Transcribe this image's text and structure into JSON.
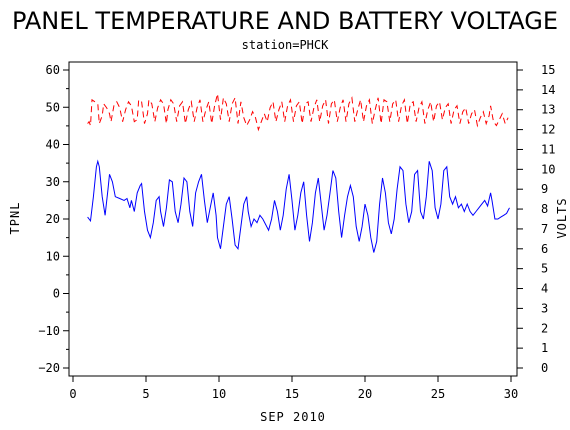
{
  "chart_data": {
    "type": "line",
    "title": "PANEL TEMPERATURE AND BATTERY VOLTAGE",
    "subtitle": "station=PHCK",
    "xlabel": "SEP 2010",
    "ylabel_left": "TPNL",
    "ylabel_right": "VOLTS",
    "xlim": [
      0,
      30
    ],
    "ylim_left": [
      -20,
      60
    ],
    "ylim_right": [
      0,
      15
    ],
    "x_ticks": [
      0,
      5,
      10,
      15,
      20,
      25,
      30
    ],
    "y_left_ticks": [
      -20,
      -10,
      0,
      10,
      20,
      30,
      40,
      50,
      60
    ],
    "y_right_ticks": [
      0,
      1,
      2,
      3,
      4,
      5,
      6,
      7,
      8,
      9,
      10,
      11,
      12,
      13,
      14,
      15
    ],
    "series": [
      {
        "axis": "left",
        "color": "#0000ff",
        "style": "solid",
        "points": [
          [
            1.0,
            20.5
          ],
          [
            1.2,
            19.5
          ],
          [
            1.4,
            26
          ],
          [
            1.6,
            34
          ],
          [
            1.7,
            35.5
          ],
          [
            1.8,
            34
          ],
          [
            2.0,
            26
          ],
          [
            2.2,
            21
          ],
          [
            2.4,
            28
          ],
          [
            2.5,
            32
          ],
          [
            2.7,
            30
          ],
          [
            2.9,
            26
          ],
          [
            3.2,
            25.5
          ],
          [
            3.5,
            25
          ],
          [
            3.7,
            25.5
          ],
          [
            3.9,
            23
          ],
          [
            4.0,
            25
          ],
          [
            4.2,
            22
          ],
          [
            4.4,
            27
          ],
          [
            4.6,
            29
          ],
          [
            4.7,
            29.5
          ],
          [
            4.9,
            22
          ],
          [
            5.1,
            17
          ],
          [
            5.3,
            15
          ],
          [
            5.5,
            19
          ],
          [
            5.7,
            25
          ],
          [
            5.9,
            26
          ],
          [
            6.0,
            22
          ],
          [
            6.2,
            18
          ],
          [
            6.4,
            23
          ],
          [
            6.6,
            30.5
          ],
          [
            6.8,
            30
          ],
          [
            7.0,
            22
          ],
          [
            7.2,
            19
          ],
          [
            7.4,
            24
          ],
          [
            7.6,
            31
          ],
          [
            7.8,
            30
          ],
          [
            8.0,
            22
          ],
          [
            8.2,
            18
          ],
          [
            8.4,
            27
          ],
          [
            8.6,
            30
          ],
          [
            8.8,
            32
          ],
          [
            9.0,
            25
          ],
          [
            9.2,
            19
          ],
          [
            9.4,
            23
          ],
          [
            9.6,
            27
          ],
          [
            9.8,
            21
          ],
          [
            9.9,
            15
          ],
          [
            10.1,
            12
          ],
          [
            10.3,
            18
          ],
          [
            10.5,
            24
          ],
          [
            10.7,
            26
          ],
          [
            10.9,
            20
          ],
          [
            11.1,
            13
          ],
          [
            11.3,
            12
          ],
          [
            11.5,
            18
          ],
          [
            11.7,
            24
          ],
          [
            11.9,
            26
          ],
          [
            12.0,
            22
          ],
          [
            12.2,
            18
          ],
          [
            12.4,
            20
          ],
          [
            12.6,
            19
          ],
          [
            12.8,
            21
          ],
          [
            13.0,
            20
          ],
          [
            13.2,
            18.5
          ],
          [
            13.4,
            17
          ],
          [
            13.6,
            20
          ],
          [
            13.8,
            25
          ],
          [
            14.0,
            22
          ],
          [
            14.2,
            17
          ],
          [
            14.4,
            21
          ],
          [
            14.6,
            28
          ],
          [
            14.8,
            32
          ],
          [
            15.0,
            25
          ],
          [
            15.2,
            17
          ],
          [
            15.4,
            21
          ],
          [
            15.6,
            27
          ],
          [
            15.8,
            30
          ],
          [
            16.0,
            21
          ],
          [
            16.2,
            14
          ],
          [
            16.4,
            19
          ],
          [
            16.6,
            27
          ],
          [
            16.8,
            31
          ],
          [
            17.0,
            24
          ],
          [
            17.2,
            17
          ],
          [
            17.4,
            21
          ],
          [
            17.6,
            27
          ],
          [
            17.8,
            33
          ],
          [
            18.0,
            31
          ],
          [
            18.2,
            22
          ],
          [
            18.4,
            15
          ],
          [
            18.6,
            21
          ],
          [
            18.8,
            26
          ],
          [
            19.0,
            29
          ],
          [
            19.2,
            26
          ],
          [
            19.4,
            18
          ],
          [
            19.6,
            14
          ],
          [
            19.8,
            18
          ],
          [
            20.0,
            24
          ],
          [
            20.2,
            21
          ],
          [
            20.4,
            15
          ],
          [
            20.6,
            11
          ],
          [
            20.8,
            14
          ],
          [
            21.0,
            24
          ],
          [
            21.2,
            31
          ],
          [
            21.4,
            27
          ],
          [
            21.6,
            19
          ],
          [
            21.8,
            16
          ],
          [
            22.0,
            20
          ],
          [
            22.2,
            28
          ],
          [
            22.4,
            34
          ],
          [
            22.6,
            33
          ],
          [
            22.8,
            24
          ],
          [
            23.0,
            19
          ],
          [
            23.2,
            22
          ],
          [
            23.4,
            32
          ],
          [
            23.6,
            33
          ],
          [
            23.8,
            22
          ],
          [
            24.0,
            20
          ],
          [
            24.2,
            26
          ],
          [
            24.4,
            35.5
          ],
          [
            24.6,
            33
          ],
          [
            24.8,
            23
          ],
          [
            25.0,
            20
          ],
          [
            25.2,
            24
          ],
          [
            25.4,
            33
          ],
          [
            25.6,
            34
          ],
          [
            25.8,
            26
          ],
          [
            26.0,
            24
          ],
          [
            26.2,
            26
          ],
          [
            26.4,
            23
          ],
          [
            26.6,
            24
          ],
          [
            26.8,
            22
          ],
          [
            27.0,
            24
          ],
          [
            27.2,
            22
          ],
          [
            27.4,
            21
          ],
          [
            27.6,
            22
          ],
          [
            27.8,
            23
          ],
          [
            28.0,
            24
          ],
          [
            28.2,
            25
          ],
          [
            28.4,
            23.5
          ],
          [
            28.6,
            27
          ],
          [
            28.7,
            25
          ],
          [
            28.9,
            20
          ],
          [
            29.1,
            20
          ],
          [
            29.3,
            20.5
          ],
          [
            29.5,
            21
          ],
          [
            29.7,
            21.5
          ],
          [
            29.9,
            23
          ]
        ]
      },
      {
        "axis": "right",
        "color": "#ff0000",
        "style": "dashed",
        "points": [
          [
            1.0,
            12.3
          ],
          [
            1.1,
            12.4
          ],
          [
            1.2,
            12.2
          ],
          [
            1.3,
            13.5
          ],
          [
            1.5,
            13.4
          ],
          [
            1.7,
            13.3
          ],
          [
            1.8,
            12.3
          ],
          [
            2.0,
            12.7
          ],
          [
            2.1,
            13.3
          ],
          [
            2.3,
            13.1
          ],
          [
            2.5,
            12.8
          ],
          [
            2.6,
            12.4
          ],
          [
            2.8,
            13.2
          ],
          [
            3.0,
            13.4
          ],
          [
            3.2,
            13.1
          ],
          [
            3.4,
            12.4
          ],
          [
            3.6,
            13.0
          ],
          [
            3.8,
            13.4
          ],
          [
            4.0,
            13.2
          ],
          [
            4.2,
            12.4
          ],
          [
            4.4,
            12.5
          ],
          [
            4.5,
            13.5
          ],
          [
            4.7,
            13.4
          ],
          [
            4.9,
            12.3
          ],
          [
            5.1,
            12.8
          ],
          [
            5.2,
            13.5
          ],
          [
            5.4,
            13.3
          ],
          [
            5.6,
            12.4
          ],
          [
            5.8,
            13.1
          ],
          [
            6.0,
            13.5
          ],
          [
            6.2,
            13.3
          ],
          [
            6.4,
            12.3
          ],
          [
            6.5,
            13.0
          ],
          [
            6.7,
            13.5
          ],
          [
            6.9,
            13.3
          ],
          [
            7.1,
            12.4
          ],
          [
            7.3,
            13.2
          ],
          [
            7.5,
            13.4
          ],
          [
            7.7,
            12.3
          ],
          [
            7.9,
            13.0
          ],
          [
            8.1,
            13.4
          ],
          [
            8.3,
            12.4
          ],
          [
            8.5,
            13.1
          ],
          [
            8.7,
            13.5
          ],
          [
            8.9,
            12.4
          ],
          [
            9.1,
            13.0
          ],
          [
            9.3,
            13.4
          ],
          [
            9.5,
            12.3
          ],
          [
            9.7,
            13.2
          ],
          [
            9.9,
            13.8
          ],
          [
            10.1,
            12.5
          ],
          [
            10.3,
            13.6
          ],
          [
            10.5,
            13.3
          ],
          [
            10.7,
            12.4
          ],
          [
            10.9,
            13.3
          ],
          [
            11.1,
            13.6
          ],
          [
            11.3,
            12.3
          ],
          [
            11.5,
            13.4
          ],
          [
            11.7,
            12.6
          ],
          [
            11.9,
            12.2
          ],
          [
            12.1,
            12.5
          ],
          [
            12.3,
            12.9
          ],
          [
            12.5,
            12.6
          ],
          [
            12.7,
            12.0
          ],
          [
            12.9,
            12.4
          ],
          [
            13.1,
            12.8
          ],
          [
            13.3,
            12.4
          ],
          [
            13.5,
            13.1
          ],
          [
            13.7,
            13.4
          ],
          [
            13.9,
            12.4
          ],
          [
            14.1,
            13.0
          ],
          [
            14.3,
            13.4
          ],
          [
            14.5,
            12.4
          ],
          [
            14.7,
            13.2
          ],
          [
            14.9,
            13.5
          ],
          [
            15.1,
            12.4
          ],
          [
            15.3,
            13.2
          ],
          [
            15.5,
            13.4
          ],
          [
            15.7,
            12.3
          ],
          [
            15.9,
            13.3
          ],
          [
            16.1,
            13.4
          ],
          [
            16.3,
            12.4
          ],
          [
            16.5,
            13.1
          ],
          [
            16.7,
            13.5
          ],
          [
            16.9,
            12.4
          ],
          [
            17.1,
            13.2
          ],
          [
            17.3,
            13.5
          ],
          [
            17.5,
            12.3
          ],
          [
            17.7,
            13.3
          ],
          [
            17.9,
            13.5
          ],
          [
            18.1,
            12.4
          ],
          [
            18.3,
            13.1
          ],
          [
            18.5,
            13.5
          ],
          [
            18.7,
            12.4
          ],
          [
            18.9,
            13.3
          ],
          [
            19.1,
            13.6
          ],
          [
            19.3,
            12.4
          ],
          [
            19.5,
            13.0
          ],
          [
            19.7,
            13.5
          ],
          [
            19.9,
            12.4
          ],
          [
            20.1,
            13.2
          ],
          [
            20.3,
            13.5
          ],
          [
            20.5,
            12.3
          ],
          [
            20.7,
            13.0
          ],
          [
            20.9,
            13.6
          ],
          [
            21.1,
            12.3
          ],
          [
            21.3,
            13.5
          ],
          [
            21.5,
            13.4
          ],
          [
            21.7,
            12.4
          ],
          [
            21.9,
            13.3
          ],
          [
            22.1,
            13.5
          ],
          [
            22.3,
            12.4
          ],
          [
            22.5,
            13.2
          ],
          [
            22.7,
            13.5
          ],
          [
            22.9,
            12.3
          ],
          [
            23.1,
            13.3
          ],
          [
            23.3,
            13.4
          ],
          [
            23.5,
            12.4
          ],
          [
            23.7,
            13.1
          ],
          [
            23.9,
            13.4
          ],
          [
            24.1,
            12.3
          ],
          [
            24.3,
            13.0
          ],
          [
            24.5,
            13.4
          ],
          [
            24.7,
            12.4
          ],
          [
            24.9,
            13.2
          ],
          [
            25.1,
            13.4
          ],
          [
            25.3,
            12.5
          ],
          [
            25.5,
            13.1
          ],
          [
            25.7,
            13.3
          ],
          [
            25.9,
            12.3
          ],
          [
            26.1,
            13.0
          ],
          [
            26.3,
            13.2
          ],
          [
            26.5,
            12.3
          ],
          [
            26.7,
            12.9
          ],
          [
            26.9,
            13.1
          ],
          [
            27.1,
            12.3
          ],
          [
            27.3,
            12.8
          ],
          [
            27.5,
            13.0
          ],
          [
            27.7,
            12.2
          ],
          [
            27.9,
            12.6
          ],
          [
            28.1,
            12.9
          ],
          [
            28.3,
            12.3
          ],
          [
            28.5,
            12.7
          ],
          [
            28.6,
            13.2
          ],
          [
            28.8,
            12.4
          ],
          [
            29.0,
            12.2
          ],
          [
            29.2,
            12.5
          ],
          [
            29.4,
            12.8
          ],
          [
            29.6,
            12.3
          ],
          [
            29.8,
            12.6
          ]
        ]
      }
    ]
  }
}
